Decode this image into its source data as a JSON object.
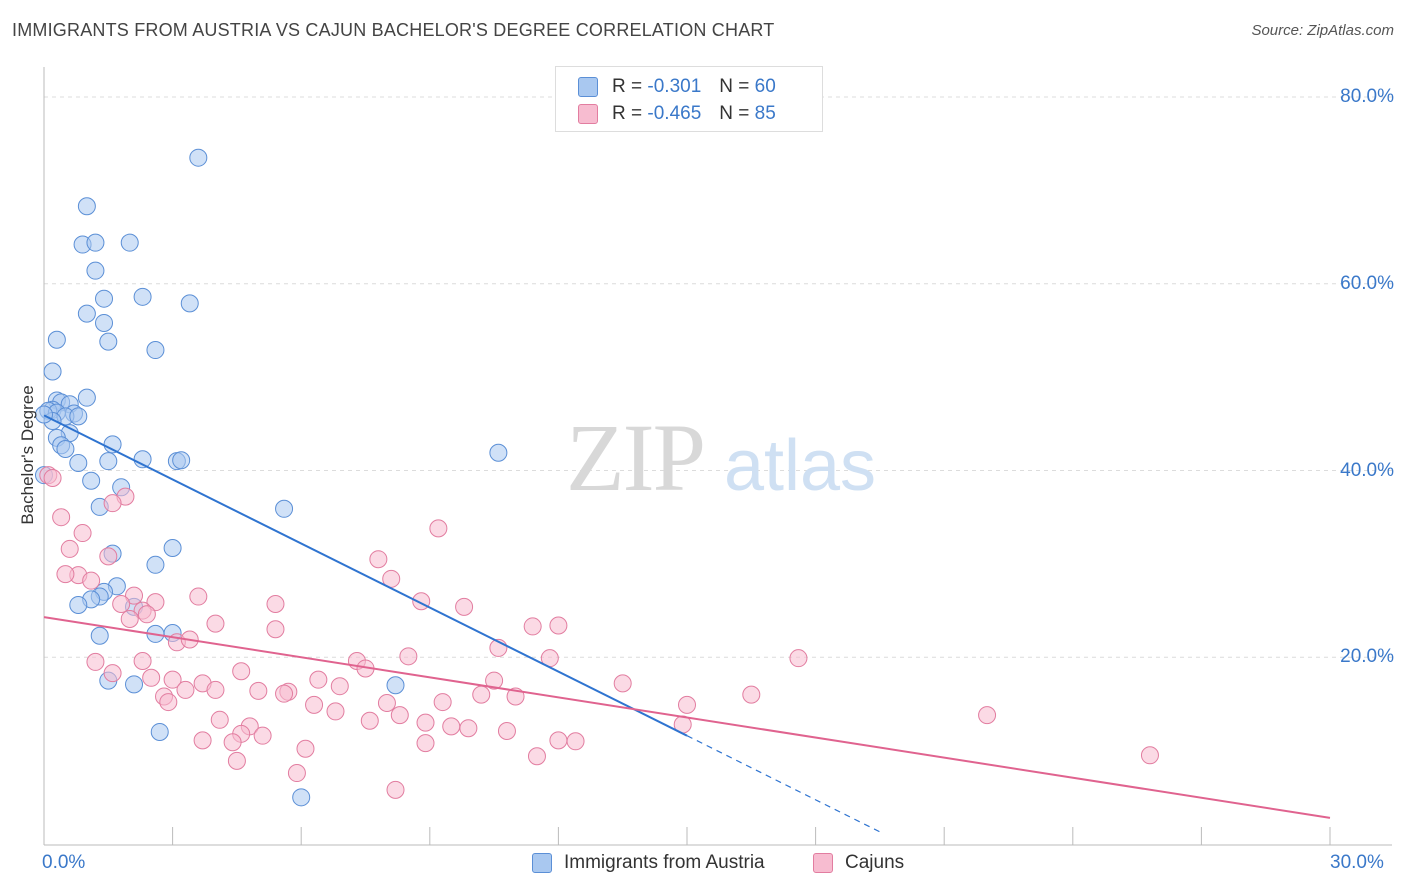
{
  "title": "IMMIGRANTS FROM AUSTRIA VS CAJUN BACHELOR'S DEGREE CORRELATION CHART",
  "source": "Source: ZipAtlas.com",
  "watermark": {
    "zip": "ZIP",
    "atlas": "atlas"
  },
  "legend": {
    "rows": [
      {
        "r_label": "R =",
        "r_value": "-0.301",
        "n_label": "N =",
        "n_value": "60",
        "color": "#a9c8f0",
        "border": "#5b8fd6"
      },
      {
        "r_label": "R =",
        "r_value": "-0.465",
        "n_label": "N =",
        "n_value": "85",
        "color": "#f7bcd0",
        "border": "#e27da0"
      }
    ]
  },
  "chart_data": {
    "type": "scatter",
    "title": "IMMIGRANTS FROM AUSTRIA VS CAJUN BACHELOR'S DEGREE CORRELATION CHART",
    "xlabel": "",
    "ylabel": "Bachelor's Degree",
    "xlim": [
      0,
      30
    ],
    "ylim": [
      0,
      80
    ],
    "x_tick_labels": [
      "0.0%",
      "30.0%"
    ],
    "y_ticks": [
      20,
      40,
      60,
      80
    ],
    "y_tick_labels": [
      "20.0%",
      "40.0%",
      "60.0%",
      "80.0%"
    ],
    "grid": true,
    "legend_position": "bottom",
    "series": [
      {
        "name": "Immigrants from Austria",
        "color": "#a9c8f0",
        "stroke": "#5b8fd6",
        "trend": {
          "x": [
            0,
            15
          ],
          "y": [
            45.9,
            11.6
          ],
          "color": "#2f74d0"
        },
        "trend_extension": {
          "x": [
            15,
            19.5
          ],
          "y": [
            11.6,
            1.3
          ]
        },
        "points": [
          {
            "x": 3.6,
            "y": 73.5
          },
          {
            "x": 1.0,
            "y": 68.3
          },
          {
            "x": 0.9,
            "y": 64.2
          },
          {
            "x": 1.2,
            "y": 64.4
          },
          {
            "x": 2.0,
            "y": 64.4
          },
          {
            "x": 1.2,
            "y": 61.4
          },
          {
            "x": 2.3,
            "y": 58.6
          },
          {
            "x": 1.4,
            "y": 58.4
          },
          {
            "x": 3.4,
            "y": 57.9
          },
          {
            "x": 1.0,
            "y": 56.8
          },
          {
            "x": 1.4,
            "y": 55.8
          },
          {
            "x": 0.3,
            "y": 54.0
          },
          {
            "x": 1.5,
            "y": 53.8
          },
          {
            "x": 2.6,
            "y": 52.9
          },
          {
            "x": 0.2,
            "y": 50.6
          },
          {
            "x": 0.3,
            "y": 47.5
          },
          {
            "x": 1.0,
            "y": 47.8
          },
          {
            "x": 0.4,
            "y": 47.3
          },
          {
            "x": 0.6,
            "y": 47.1
          },
          {
            "x": 0.2,
            "y": 46.5
          },
          {
            "x": 0.1,
            "y": 46.4
          },
          {
            "x": 0.3,
            "y": 46.2
          },
          {
            "x": 0.7,
            "y": 46.1
          },
          {
            "x": 0.5,
            "y": 45.8
          },
          {
            "x": 0.8,
            "y": 45.8
          },
          {
            "x": 0.2,
            "y": 45.3
          },
          {
            "x": 0.6,
            "y": 44.0
          },
          {
            "x": 0.3,
            "y": 43.5
          },
          {
            "x": 0.4,
            "y": 42.7
          },
          {
            "x": 0.5,
            "y": 42.3
          },
          {
            "x": 1.6,
            "y": 42.8
          },
          {
            "x": 2.3,
            "y": 41.2
          },
          {
            "x": 3.1,
            "y": 41.0
          },
          {
            "x": 3.2,
            "y": 41.1
          },
          {
            "x": 1.5,
            "y": 41.0
          },
          {
            "x": 0.8,
            "y": 40.8
          },
          {
            "x": 10.6,
            "y": 41.9
          },
          {
            "x": 1.1,
            "y": 38.9
          },
          {
            "x": 1.8,
            "y": 38.2
          },
          {
            "x": 0.0,
            "y": 39.5
          },
          {
            "x": 1.3,
            "y": 36.1
          },
          {
            "x": 5.6,
            "y": 35.9
          },
          {
            "x": 3.0,
            "y": 31.7
          },
          {
            "x": 1.6,
            "y": 31.1
          },
          {
            "x": 2.6,
            "y": 29.9
          },
          {
            "x": 1.7,
            "y": 27.6
          },
          {
            "x": 1.4,
            "y": 27.0
          },
          {
            "x": 1.3,
            "y": 26.5
          },
          {
            "x": 1.1,
            "y": 26.2
          },
          {
            "x": 0.8,
            "y": 25.6
          },
          {
            "x": 2.1,
            "y": 25.4
          },
          {
            "x": 2.6,
            "y": 22.5
          },
          {
            "x": 3.0,
            "y": 22.6
          },
          {
            "x": 1.3,
            "y": 22.3
          },
          {
            "x": 1.5,
            "y": 17.5
          },
          {
            "x": 2.1,
            "y": 17.1
          },
          {
            "x": 8.2,
            "y": 17.0
          },
          {
            "x": 2.7,
            "y": 12.0
          },
          {
            "x": 6.0,
            "y": 5.0
          },
          {
            "x": 0.0,
            "y": 46.0
          }
        ]
      },
      {
        "name": "Cajuns",
        "color": "#f7bcd0",
        "stroke": "#e27da0",
        "trend": {
          "x": [
            0,
            30
          ],
          "y": [
            24.3,
            2.8
          ],
          "color": "#e0638f"
        },
        "points": [
          {
            "x": 0.1,
            "y": 39.5
          },
          {
            "x": 1.9,
            "y": 37.2
          },
          {
            "x": 9.2,
            "y": 33.8
          },
          {
            "x": 0.4,
            "y": 35.0
          },
          {
            "x": 0.9,
            "y": 33.3
          },
          {
            "x": 0.6,
            "y": 31.6
          },
          {
            "x": 1.5,
            "y": 30.8
          },
          {
            "x": 7.8,
            "y": 30.5
          },
          {
            "x": 0.8,
            "y": 28.8
          },
          {
            "x": 0.5,
            "y": 28.9
          },
          {
            "x": 1.1,
            "y": 28.2
          },
          {
            "x": 8.1,
            "y": 28.4
          },
          {
            "x": 2.1,
            "y": 26.6
          },
          {
            "x": 3.6,
            "y": 26.5
          },
          {
            "x": 8.8,
            "y": 26.0
          },
          {
            "x": 2.6,
            "y": 25.9
          },
          {
            "x": 1.8,
            "y": 25.7
          },
          {
            "x": 5.4,
            "y": 25.7
          },
          {
            "x": 9.8,
            "y": 25.4
          },
          {
            "x": 2.3,
            "y": 25.0
          },
          {
            "x": 2.0,
            "y": 24.1
          },
          {
            "x": 4.0,
            "y": 23.6
          },
          {
            "x": 11.4,
            "y": 23.3
          },
          {
            "x": 12.0,
            "y": 23.4
          },
          {
            "x": 5.4,
            "y": 23.0
          },
          {
            "x": 3.1,
            "y": 21.6
          },
          {
            "x": 3.4,
            "y": 21.9
          },
          {
            "x": 10.6,
            "y": 21.0
          },
          {
            "x": 8.5,
            "y": 20.1
          },
          {
            "x": 11.8,
            "y": 19.9
          },
          {
            "x": 17.6,
            "y": 19.9
          },
          {
            "x": 1.2,
            "y": 19.5
          },
          {
            "x": 2.3,
            "y": 19.6
          },
          {
            "x": 7.3,
            "y": 19.6
          },
          {
            "x": 7.5,
            "y": 18.8
          },
          {
            "x": 1.6,
            "y": 18.3
          },
          {
            "x": 4.6,
            "y": 18.5
          },
          {
            "x": 2.5,
            "y": 17.8
          },
          {
            "x": 3.0,
            "y": 17.6
          },
          {
            "x": 6.4,
            "y": 17.6
          },
          {
            "x": 10.5,
            "y": 17.5
          },
          {
            "x": 13.5,
            "y": 17.2
          },
          {
            "x": 3.7,
            "y": 17.2
          },
          {
            "x": 6.9,
            "y": 16.9
          },
          {
            "x": 4.0,
            "y": 16.5
          },
          {
            "x": 3.3,
            "y": 16.5
          },
          {
            "x": 5.0,
            "y": 16.4
          },
          {
            "x": 5.7,
            "y": 16.3
          },
          {
            "x": 5.6,
            "y": 16.1
          },
          {
            "x": 10.2,
            "y": 16.0
          },
          {
            "x": 16.5,
            "y": 16.0
          },
          {
            "x": 11.0,
            "y": 15.8
          },
          {
            "x": 2.8,
            "y": 15.8
          },
          {
            "x": 2.9,
            "y": 15.2
          },
          {
            "x": 8.0,
            "y": 15.1
          },
          {
            "x": 9.3,
            "y": 15.2
          },
          {
            "x": 6.3,
            "y": 14.9
          },
          {
            "x": 15.0,
            "y": 14.9
          },
          {
            "x": 6.8,
            "y": 14.2
          },
          {
            "x": 8.3,
            "y": 13.8
          },
          {
            "x": 22.0,
            "y": 13.8
          },
          {
            "x": 4.1,
            "y": 13.3
          },
          {
            "x": 7.6,
            "y": 13.2
          },
          {
            "x": 8.9,
            "y": 13.0
          },
          {
            "x": 14.9,
            "y": 12.8
          },
          {
            "x": 4.8,
            "y": 12.6
          },
          {
            "x": 9.5,
            "y": 12.6
          },
          {
            "x": 9.9,
            "y": 12.4
          },
          {
            "x": 10.8,
            "y": 12.1
          },
          {
            "x": 4.6,
            "y": 11.8
          },
          {
            "x": 5.1,
            "y": 11.6
          },
          {
            "x": 3.7,
            "y": 11.1
          },
          {
            "x": 12.0,
            "y": 11.1
          },
          {
            "x": 12.4,
            "y": 11.0
          },
          {
            "x": 8.9,
            "y": 10.8
          },
          {
            "x": 4.4,
            "y": 10.9
          },
          {
            "x": 6.1,
            "y": 10.2
          },
          {
            "x": 11.5,
            "y": 9.4
          },
          {
            "x": 25.8,
            "y": 9.5
          },
          {
            "x": 4.5,
            "y": 8.9
          },
          {
            "x": 5.9,
            "y": 7.6
          },
          {
            "x": 8.2,
            "y": 5.8
          },
          {
            "x": 0.2,
            "y": 39.2
          },
          {
            "x": 1.6,
            "y": 36.5
          },
          {
            "x": 2.4,
            "y": 24.6
          }
        ]
      }
    ]
  }
}
